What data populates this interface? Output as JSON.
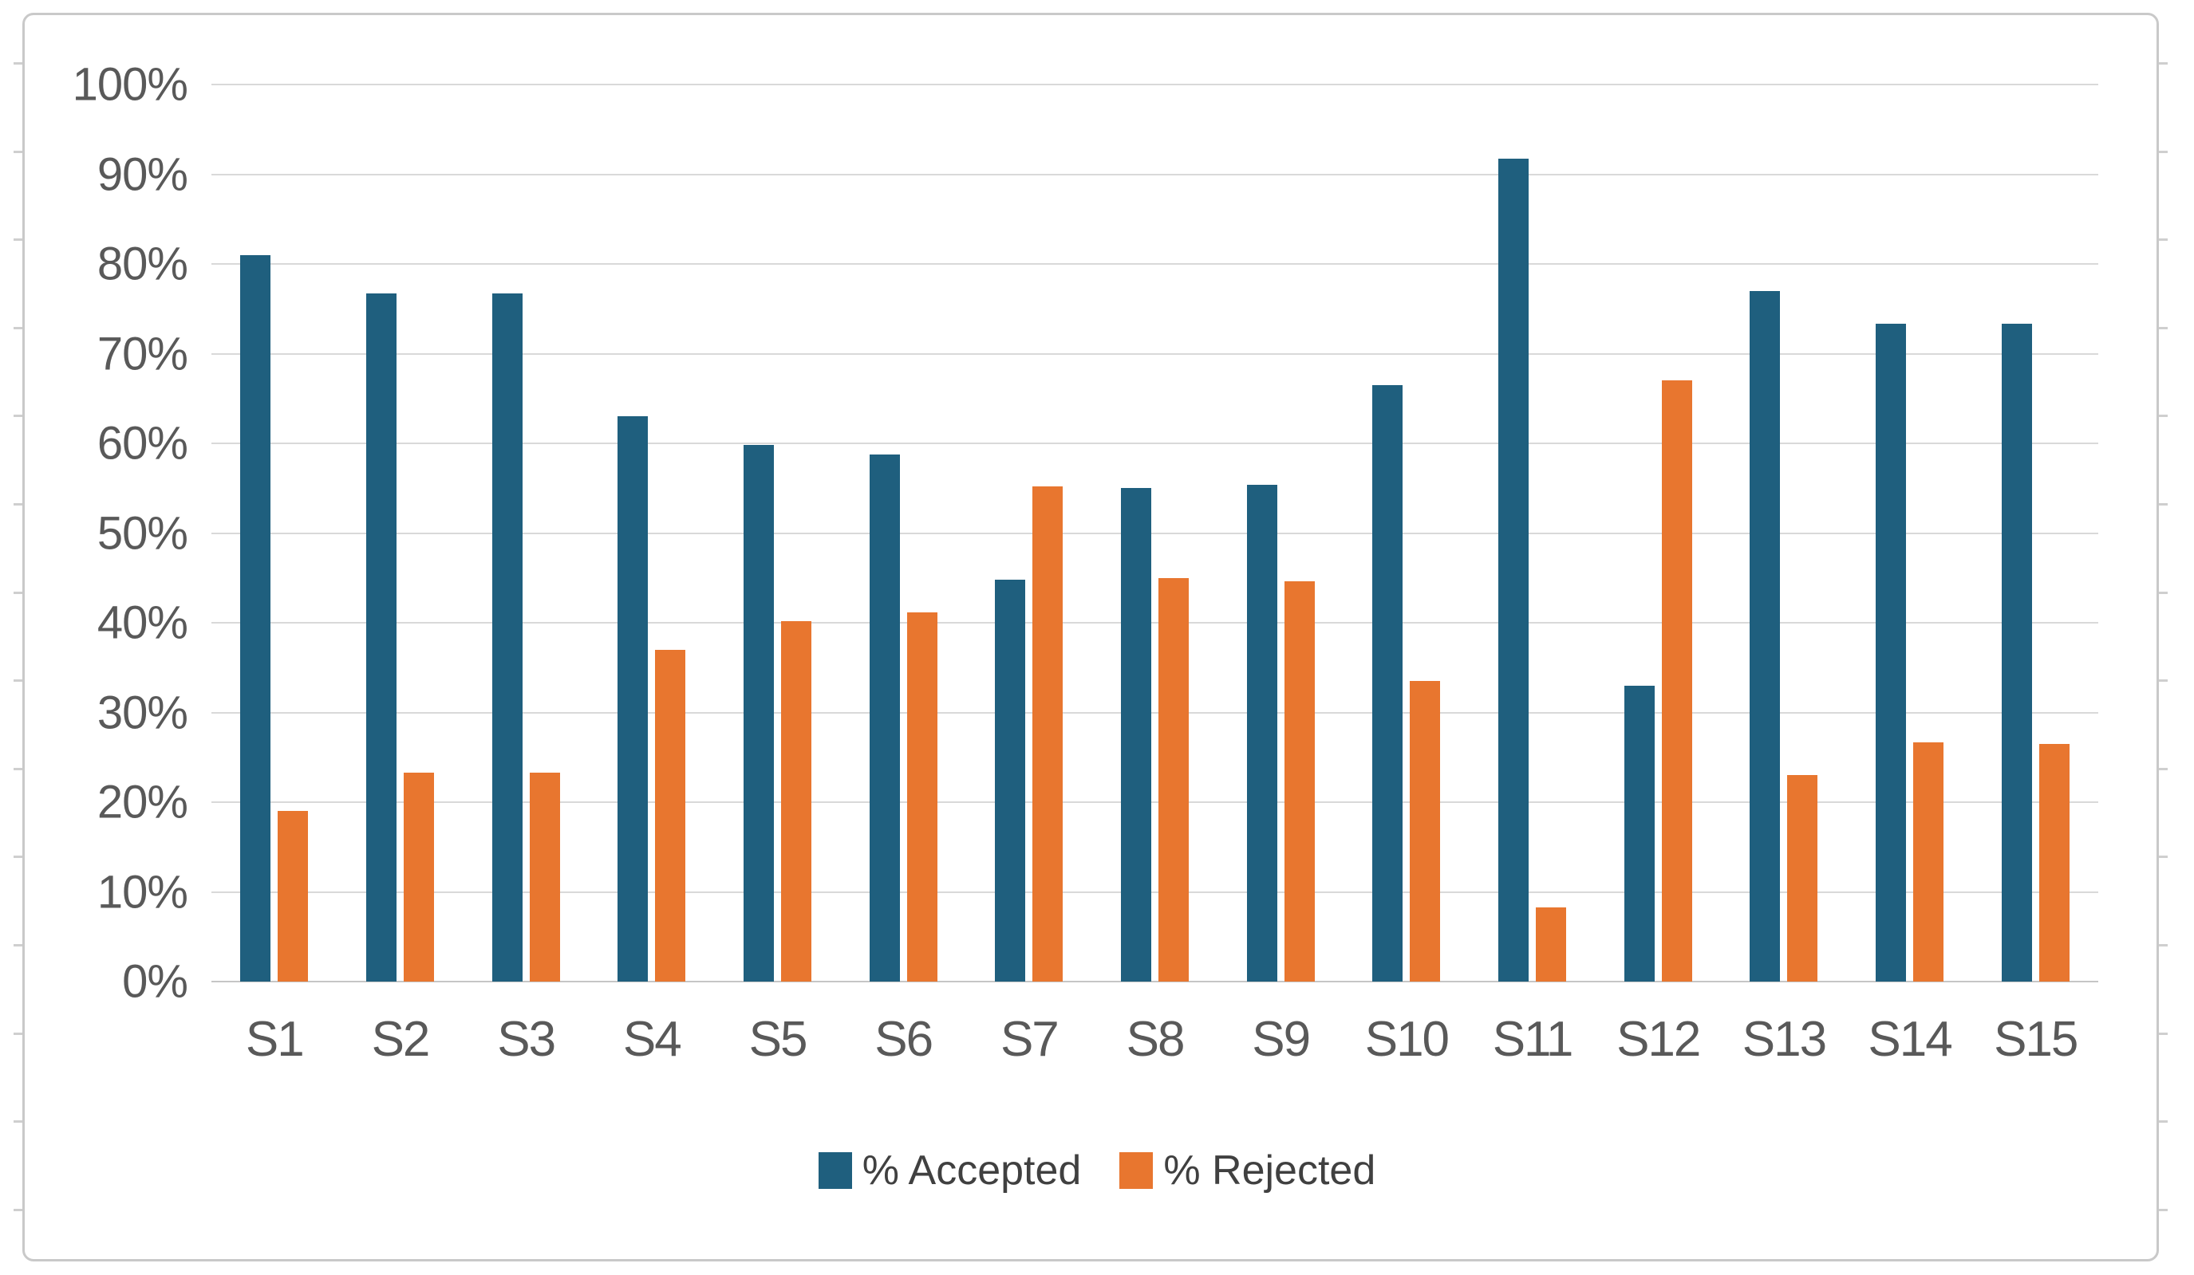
{
  "chart_data": {
    "type": "bar",
    "title": "",
    "categories": [
      "S1",
      "S2",
      "S3",
      "S4",
      "S5",
      "S6",
      "S7",
      "S8",
      "S9",
      "S10",
      "S11",
      "S12",
      "S13",
      "S14",
      "S15"
    ],
    "series": [
      {
        "name": "% Accepted",
        "color": "#1F5F7E",
        "values": [
          81.0,
          76.7,
          76.7,
          63.0,
          59.8,
          58.8,
          44.8,
          55.0,
          55.4,
          66.5,
          91.7,
          33.0,
          77.0,
          73.3,
          73.3
        ]
      },
      {
        "name": "% Rejected",
        "color": "#E8762F",
        "values": [
          19.0,
          23.3,
          23.3,
          37.0,
          40.2,
          41.2,
          55.2,
          45.0,
          44.6,
          33.5,
          8.3,
          67.0,
          23.0,
          26.7,
          26.5
        ]
      }
    ],
    "y_axis": {
      "min": 0,
      "max": 100,
      "step": 10,
      "unit": "%",
      "tick_labels_top_to_bottom": [
        "100%",
        "90%",
        "80%",
        "70%",
        "60%",
        "50%",
        "40%",
        "30%",
        "20%",
        "10%",
        "0%"
      ]
    },
    "grid": true,
    "legend_position": "bottom-center"
  },
  "legend": {
    "items": [
      {
        "label": "% Accepted",
        "color": "#1F5F7E"
      },
      {
        "label": "% Rejected",
        "color": "#E8762F"
      }
    ]
  },
  "colors": {
    "accepted": "#1F5F7E",
    "rejected": "#E8762F",
    "gridline": "#d9d9d9",
    "axis_text": "#595959",
    "legend_text": "#404040",
    "frame_border": "#c9c9c9"
  }
}
